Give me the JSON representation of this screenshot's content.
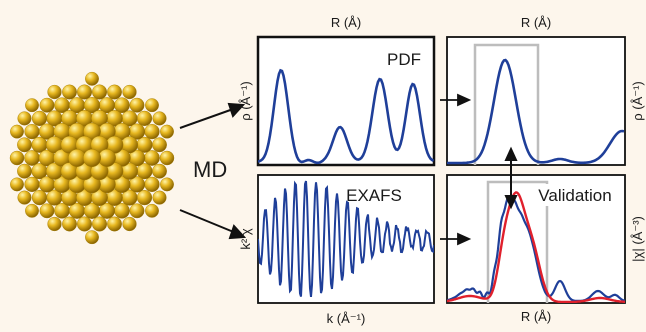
{
  "figure": {
    "method_label": "MD",
    "pdf_panel": {
      "title": "PDF",
      "x_label": "R (Å)",
      "y_label": "ρ (Å⁻¹)"
    },
    "pdf_zoom_panel": {
      "x_label": "R (Å)",
      "y_label_clipped": "ρ (Å⁻¹)"
    },
    "exafs_panel": {
      "title": "EXAFS",
      "x_label": "k (Å⁻¹)",
      "y_label": "k² χ"
    },
    "validation_panel": {
      "title": "Validation",
      "x_label": "R (Å)",
      "y_label_clipped": "|χ| (Å⁻³)"
    },
    "colors": {
      "simulated_curve": "#1f3f99",
      "experimental_curve": "#e0202c",
      "window": "#bdbdbd",
      "nanoparticle": "#e8b820"
    }
  }
}
